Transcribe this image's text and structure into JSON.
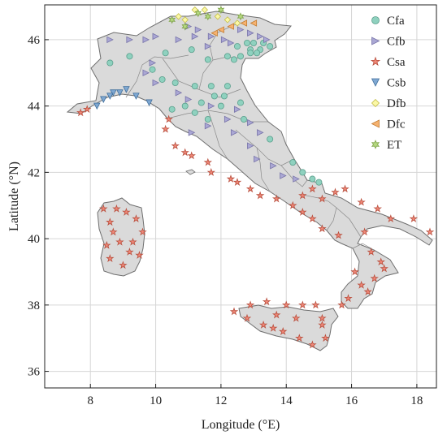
{
  "map": {
    "xlabel": "Longitude (°E)",
    "ylabel": "Latitude (°N)",
    "xlim": [
      6.6,
      18.6
    ],
    "ylim": [
      35.5,
      47.05
    ],
    "grid": true,
    "legend_placement": "top-right",
    "x_ticks": [
      8,
      10,
      12,
      14,
      16,
      18
    ],
    "y_ticks": [
      36,
      38,
      40,
      42,
      44,
      46
    ],
    "x_tick_labels": [
      "8",
      "10",
      "12",
      "14",
      "16",
      "18"
    ],
    "y_tick_labels": [
      "36",
      "38",
      "40",
      "42",
      "44",
      "46"
    ],
    "land_color": "#dadada",
    "border_color": "#7c7c7c",
    "classes": [
      {
        "code": "Cfa",
        "symbol": "circle",
        "color": "#8fd1bf",
        "stroke": "#5a9f8c"
      },
      {
        "code": "Cfb",
        "symbol": "triangle-right",
        "color": "#aaa7d4",
        "stroke": "#7874a9"
      },
      {
        "code": "Csa",
        "symbol": "star",
        "color": "#f08878",
        "stroke": "#b9503f"
      },
      {
        "code": "Csb",
        "symbol": "triangle-down",
        "color": "#7fa8d2",
        "stroke": "#416f9c"
      },
      {
        "code": "Dfb",
        "symbol": "diamond",
        "color": "#fbf8a6",
        "stroke": "#c3bd4a"
      },
      {
        "code": "Dfc",
        "symbol": "triangle-left",
        "color": "#f6b26f",
        "stroke": "#c27c33"
      },
      {
        "code": "ET",
        "symbol": "hexagram",
        "color": "#b5d880",
        "stroke": "#7ea447"
      }
    ]
  },
  "stations": {
    "Cfa": [
      [
        12.8,
        45.9
      ],
      [
        13.0,
        45.9
      ],
      [
        13.3,
        45.9
      ],
      [
        12.5,
        45.8
      ],
      [
        12.9,
        45.7
      ],
      [
        13.2,
        45.7
      ],
      [
        13.5,
        45.8
      ],
      [
        12.6,
        45.5
      ],
      [
        12.9,
        45.6
      ],
      [
        13.1,
        45.6
      ],
      [
        12.2,
        45.5
      ],
      [
        12.4,
        45.4
      ],
      [
        11.1,
        45.7
      ],
      [
        11.6,
        45.4
      ],
      [
        10.3,
        45.6
      ],
      [
        9.2,
        45.5
      ],
      [
        8.6,
        45.3
      ],
      [
        9.9,
        45.1
      ],
      [
        10.2,
        44.8
      ],
      [
        10.6,
        44.7
      ],
      [
        11.2,
        44.6
      ],
      [
        11.7,
        44.6
      ],
      [
        12.2,
        44.6
      ],
      [
        12.1,
        44.3
      ],
      [
        11.8,
        44.3
      ],
      [
        11.4,
        44.1
      ],
      [
        10.9,
        44.0
      ],
      [
        10.5,
        43.9
      ],
      [
        11.2,
        43.8
      ],
      [
        11.6,
        43.6
      ],
      [
        12.6,
        44.1
      ],
      [
        12.0,
        44.0
      ],
      [
        12.7,
        43.6
      ],
      [
        13.5,
        43.0
      ],
      [
        14.2,
        42.3
      ],
      [
        14.5,
        42.0
      ],
      [
        14.8,
        41.8
      ],
      [
        15.0,
        41.7
      ]
    ],
    "Cfb": [
      [
        11.0,
        46.4
      ],
      [
        11.3,
        46.3
      ],
      [
        11.7,
        46.1
      ],
      [
        12.1,
        46.0
      ],
      [
        12.6,
        46.3
      ],
      [
        12.9,
        46.2
      ],
      [
        13.2,
        46.1
      ],
      [
        13.4,
        46.0
      ],
      [
        12.3,
        45.9
      ],
      [
        11.6,
        45.8
      ],
      [
        11.2,
        46.1
      ],
      [
        10.7,
        46.0
      ],
      [
        10.0,
        46.1
      ],
      [
        9.7,
        46.0
      ],
      [
        9.2,
        46.0
      ],
      [
        8.6,
        46.0
      ],
      [
        9.9,
        45.3
      ],
      [
        9.7,
        45.0
      ],
      [
        10.0,
        44.7
      ],
      [
        10.7,
        44.4
      ],
      [
        11.0,
        44.2
      ],
      [
        11.7,
        44.0
      ],
      [
        12.2,
        43.6
      ],
      [
        12.5,
        43.9
      ],
      [
        12.9,
        43.5
      ],
      [
        13.2,
        43.2
      ],
      [
        12.4,
        43.2
      ],
      [
        12.9,
        42.8
      ],
      [
        13.1,
        42.4
      ],
      [
        13.6,
        42.2
      ],
      [
        13.9,
        41.9
      ],
      [
        14.3,
        41.8
      ],
      [
        11.6,
        43.4
      ],
      [
        11.1,
        43.2
      ]
    ],
    "Csa": [
      [
        7.7,
        43.8
      ],
      [
        7.9,
        43.9
      ],
      [
        10.4,
        43.6
      ],
      [
        10.3,
        43.3
      ],
      [
        10.6,
        42.8
      ],
      [
        10.9,
        42.6
      ],
      [
        11.1,
        42.5
      ],
      [
        11.6,
        42.3
      ],
      [
        11.7,
        42.0
      ],
      [
        12.3,
        41.8
      ],
      [
        12.5,
        41.7
      ],
      [
        12.9,
        41.5
      ],
      [
        13.2,
        41.3
      ],
      [
        13.7,
        41.2
      ],
      [
        14.2,
        41.0
      ],
      [
        14.5,
        40.8
      ],
      [
        14.8,
        40.6
      ],
      [
        15.1,
        40.3
      ],
      [
        15.6,
        40.1
      ],
      [
        14.5,
        41.3
      ],
      [
        14.8,
        41.5
      ],
      [
        15.1,
        41.2
      ],
      [
        15.5,
        41.4
      ],
      [
        15.8,
        41.5
      ],
      [
        16.3,
        41.1
      ],
      [
        16.8,
        40.9
      ],
      [
        17.2,
        40.6
      ],
      [
        17.9,
        40.6
      ],
      [
        18.4,
        40.2
      ],
      [
        16.4,
        40.2
      ],
      [
        16.6,
        39.6
      ],
      [
        16.9,
        39.3
      ],
      [
        16.1,
        39.0
      ],
      [
        16.3,
        38.6
      ],
      [
        16.5,
        38.4
      ],
      [
        15.9,
        38.2
      ],
      [
        15.7,
        38.0
      ],
      [
        16.7,
        38.8
      ],
      [
        17.0,
        39.1
      ],
      [
        8.4,
        40.9
      ],
      [
        8.8,
        40.9
      ],
      [
        9.1,
        40.8
      ],
      [
        9.4,
        40.6
      ],
      [
        9.6,
        40.2
      ],
      [
        9.3,
        39.9
      ],
      [
        8.7,
        40.2
      ],
      [
        8.5,
        39.8
      ],
      [
        8.6,
        39.4
      ],
      [
        9.0,
        39.2
      ],
      [
        9.5,
        39.5
      ],
      [
        9.2,
        39.6
      ],
      [
        8.9,
        39.9
      ],
      [
        8.6,
        40.5
      ],
      [
        12.4,
        37.8
      ],
      [
        12.8,
        37.6
      ],
      [
        13.3,
        37.4
      ],
      [
        13.9,
        37.2
      ],
      [
        14.4,
        37.0
      ],
      [
        14.8,
        36.8
      ],
      [
        15.2,
        37.0
      ],
      [
        15.1,
        37.4
      ],
      [
        15.1,
        37.6
      ],
      [
        14.9,
        38.0
      ],
      [
        14.5,
        38.0
      ],
      [
        14.0,
        38.0
      ],
      [
        13.4,
        38.1
      ],
      [
        12.9,
        38.0
      ],
      [
        13.7,
        37.7
      ],
      [
        14.3,
        37.6
      ],
      [
        13.6,
        37.3
      ]
    ],
    "Csb": [
      [
        8.2,
        44.0
      ],
      [
        8.4,
        44.2
      ],
      [
        8.7,
        44.4
      ],
      [
        8.9,
        44.4
      ],
      [
        9.1,
        44.5
      ],
      [
        9.4,
        44.3
      ],
      [
        9.8,
        44.1
      ],
      [
        8.6,
        44.3
      ]
    ],
    "Dfb": [
      [
        10.7,
        46.7
      ],
      [
        10.9,
        46.6
      ],
      [
        11.2,
        46.9
      ],
      [
        11.5,
        46.9
      ],
      [
        11.9,
        46.7
      ],
      [
        12.2,
        46.6
      ],
      [
        12.5,
        46.5
      ]
    ],
    "Dfc": [
      [
        12.0,
        46.3
      ],
      [
        12.3,
        46.4
      ],
      [
        12.7,
        46.5
      ],
      [
        13.0,
        46.5
      ],
      [
        11.8,
        46.2
      ]
    ],
    "ET": [
      [
        10.5,
        46.6
      ],
      [
        10.9,
        46.4
      ],
      [
        11.3,
        46.8
      ],
      [
        11.6,
        46.7
      ],
      [
        12.0,
        46.9
      ],
      [
        12.6,
        46.7
      ]
    ]
  }
}
